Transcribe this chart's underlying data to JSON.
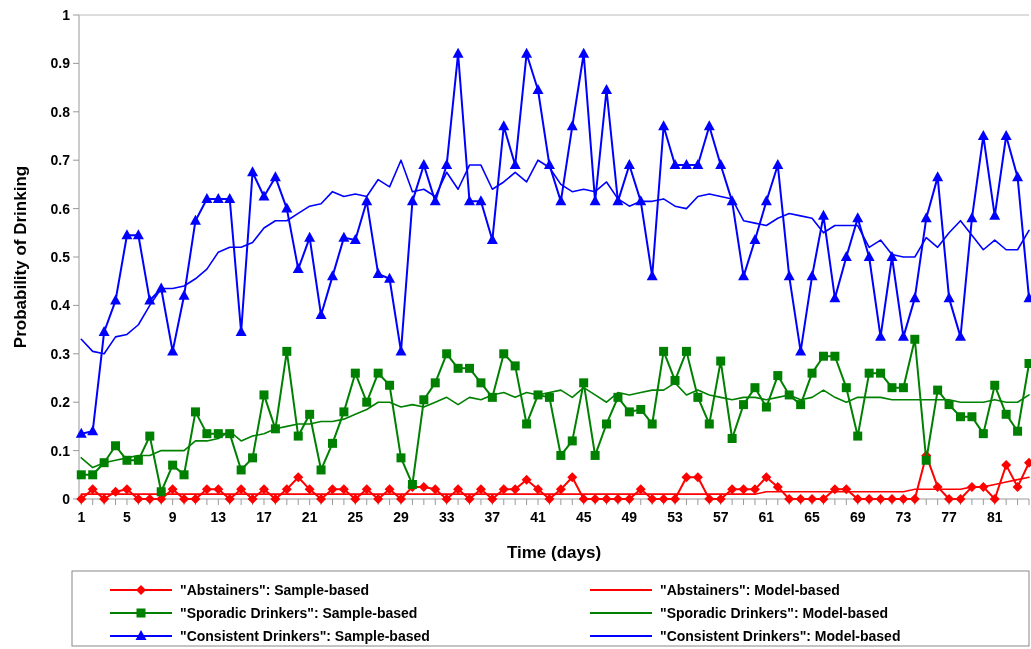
{
  "chart_data": {
    "type": "line",
    "xlabel": "Time (days)",
    "ylabel": "Probability of Drinking",
    "x": [
      1,
      2,
      3,
      4,
      5,
      6,
      7,
      8,
      9,
      10,
      11,
      12,
      13,
      14,
      15,
      16,
      17,
      18,
      19,
      20,
      21,
      22,
      23,
      24,
      25,
      26,
      27,
      28,
      29,
      30,
      31,
      32,
      33,
      34,
      35,
      36,
      37,
      38,
      39,
      40,
      41,
      42,
      43,
      44,
      45,
      46,
      47,
      48,
      49,
      50,
      51,
      52,
      53,
      54,
      55,
      56,
      57,
      58,
      59,
      60,
      61,
      62,
      63,
      64,
      65,
      66,
      67,
      68,
      69,
      70,
      71,
      72,
      73,
      74,
      75,
      76,
      77,
      78,
      79,
      80,
      81,
      82,
      83,
      84
    ],
    "xlim": [
      0.8,
      84
    ],
    "xticks": [
      1,
      {
        "value": 2,
        "label": null
      },
      {
        "value": 3,
        "label": null
      },
      {
        "value": 4,
        "label": null
      },
      5,
      {
        "value": 6,
        "label": null
      },
      {
        "value": 7,
        "label": null
      },
      {
        "value": 8,
        "label": null
      },
      9,
      {
        "value": 10,
        "label": null
      },
      {
        "value": 11,
        "label": null
      },
      {
        "value": 12,
        "label": null
      },
      13,
      {
        "value": 14,
        "label": null
      },
      {
        "value": 15,
        "label": null
      },
      {
        "value": 16,
        "label": null
      },
      17,
      {
        "value": 18,
        "label": null
      },
      {
        "value": 19,
        "label": null
      },
      {
        "value": 20,
        "label": null
      },
      21,
      {
        "value": 22,
        "label": null
      },
      {
        "value": 23,
        "label": null
      },
      {
        "value": 24,
        "label": null
      },
      25,
      {
        "value": 26,
        "label": null
      },
      {
        "value": 27,
        "label": null
      },
      {
        "value": 28,
        "label": null
      },
      29,
      {
        "value": 30,
        "label": null
      },
      {
        "value": 31,
        "label": null
      },
      {
        "value": 32,
        "label": null
      },
      33,
      {
        "value": 34,
        "label": null
      },
      {
        "value": 35,
        "label": null
      },
      {
        "value": 36,
        "label": null
      },
      37,
      {
        "value": 38,
        "label": null
      },
      {
        "value": 39,
        "label": null
      },
      {
        "value": 40,
        "label": null
      },
      41,
      {
        "value": 42,
        "label": null
      },
      {
        "value": 43,
        "label": null
      },
      {
        "value": 44,
        "label": null
      },
      45,
      {
        "value": 46,
        "label": null
      },
      {
        "value": 47,
        "label": null
      },
      {
        "value": 48,
        "label": null
      },
      49,
      {
        "value": 50,
        "label": null
      },
      {
        "value": 51,
        "label": null
      },
      {
        "value": 52,
        "label": null
      },
      53,
      {
        "value": 54,
        "label": null
      },
      {
        "value": 55,
        "label": null
      },
      {
        "value": 56,
        "label": null
      },
      57,
      {
        "value": 58,
        "label": null
      },
      {
        "value": 59,
        "label": null
      },
      {
        "value": 60,
        "label": null
      },
      61,
      {
        "value": 62,
        "label": null
      },
      {
        "value": 63,
        "label": null
      },
      {
        "value": 64,
        "label": null
      },
      65,
      {
        "value": 66,
        "label": null
      },
      {
        "value": 67,
        "label": null
      },
      {
        "value": 68,
        "label": null
      },
      69,
      {
        "value": 70,
        "label": null
      },
      {
        "value": 71,
        "label": null
      },
      {
        "value": 72,
        "label": null
      },
      73,
      {
        "value": 74,
        "label": null
      },
      {
        "value": 75,
        "label": null
      },
      {
        "value": 76,
        "label": null
      },
      77,
      {
        "value": 78,
        "label": null
      },
      {
        "value": 79,
        "label": null
      },
      {
        "value": 80,
        "label": null
      },
      81,
      {
        "value": 82,
        "label": null
      },
      {
        "value": 83,
        "label": null
      },
      {
        "value": 84,
        "label": null
      }
    ],
    "ylim": [
      0,
      1
    ],
    "yticks": [
      0,
      0.1,
      0.2,
      0.3,
      0.4,
      0.5,
      0.6,
      0.7,
      0.8,
      0.9,
      1
    ],
    "grid": false,
    "legend": "bottom",
    "line_style": "solid",
    "series": [
      {
        "name": "\"Abstainers\": Sample-based",
        "color": "#ff0000",
        "marker": "diamond",
        "values": [
          0,
          0.02,
          0,
          0.015,
          0.02,
          0,
          0,
          0,
          0.02,
          0,
          0,
          0.02,
          0.02,
          0,
          0.02,
          0,
          0.02,
          0,
          0.02,
          0.045,
          0.02,
          0,
          0.02,
          0.02,
          0,
          0.02,
          0,
          0.02,
          0,
          0.025,
          0.025,
          0.02,
          0,
          0.02,
          0,
          0.02,
          0,
          0.02,
          0.02,
          0.04,
          0.02,
          0,
          0.02,
          0.045,
          0,
          0,
          0,
          0,
          0,
          0.02,
          0,
          0,
          0,
          0.045,
          0.045,
          0,
          0,
          0.02,
          0.02,
          0.02,
          0.045,
          0.025,
          0,
          0,
          0,
          0,
          0.02,
          0.02,
          0,
          0,
          0,
          0,
          0,
          0,
          0.09,
          0.025,
          0,
          0,
          0.025,
          0.025,
          0,
          0.07,
          0.025,
          0.075
        ]
      },
      {
        "name": "\"Abstainers\": Model-based",
        "color": "#ff0000",
        "marker": "none",
        "values": [
          0.01,
          0.01,
          0.01,
          0.01,
          0.01,
          0.01,
          0.01,
          0.01,
          0.01,
          0.01,
          0.01,
          0.01,
          0.01,
          0.01,
          0.01,
          0.01,
          0.01,
          0.01,
          0.01,
          0.01,
          0.01,
          0.01,
          0.01,
          0.01,
          0.01,
          0.01,
          0.01,
          0.01,
          0.01,
          0.01,
          0.01,
          0.01,
          0.01,
          0.01,
          0.01,
          0.01,
          0.01,
          0.01,
          0.01,
          0.01,
          0.01,
          0.01,
          0.01,
          0.01,
          0.01,
          0.01,
          0.01,
          0.01,
          0.01,
          0.01,
          0.01,
          0.01,
          0.01,
          0.01,
          0.01,
          0.01,
          0.01,
          0.01,
          0.01,
          0.01,
          0.015,
          0.015,
          0.015,
          0.015,
          0.015,
          0.015,
          0.015,
          0.015,
          0.015,
          0.015,
          0.015,
          0.015,
          0.015,
          0.02,
          0.02,
          0.02,
          0.02,
          0.02,
          0.025,
          0.025,
          0.03,
          0.035,
          0.04,
          0.045
        ]
      },
      {
        "name": "\"Sporadic Drinkers\": Sample-based",
        "color": "#008000",
        "marker": "square",
        "values": [
          0.05,
          0.05,
          0.075,
          0.11,
          0.08,
          0.08,
          0.13,
          0.015,
          0.07,
          0.05,
          0.18,
          0.135,
          0.135,
          0.135,
          0.06,
          0.085,
          0.215,
          0.145,
          0.305,
          0.13,
          0.175,
          0.06,
          0.115,
          0.18,
          0.26,
          0.2,
          0.26,
          0.235,
          0.085,
          0.03,
          0.205,
          0.24,
          0.3,
          0.27,
          0.27,
          0.24,
          0.21,
          0.3,
          0.275,
          0.155,
          0.215,
          0.21,
          0.09,
          0.12,
          0.24,
          0.09,
          0.155,
          0.21,
          0.18,
          0.185,
          0.155,
          0.305,
          0.245,
          0.305,
          0.21,
          0.155,
          0.285,
          0.125,
          0.195,
          0.23,
          0.19,
          0.255,
          0.215,
          0.195,
          0.26,
          0.295,
          0.295,
          0.23,
          0.13,
          0.26,
          0.26,
          0.23,
          0.23,
          0.33,
          0.08,
          0.225,
          0.195,
          0.17,
          0.17,
          0.135,
          0.235,
          0.175,
          0.14,
          0.28
        ]
      },
      {
        "name": "\"Sporadic Drinkers\": Model-based",
        "color": "#008000",
        "marker": "none",
        "values": [
          0.085,
          0.065,
          0.075,
          0.08,
          0.085,
          0.09,
          0.09,
          0.1,
          0.1,
          0.1,
          0.12,
          0.12,
          0.125,
          0.14,
          0.12,
          0.13,
          0.135,
          0.145,
          0.15,
          0.155,
          0.155,
          0.16,
          0.16,
          0.165,
          0.175,
          0.185,
          0.2,
          0.2,
          0.19,
          0.195,
          0.19,
          0.2,
          0.21,
          0.195,
          0.21,
          0.205,
          0.215,
          0.22,
          0.21,
          0.22,
          0.215,
          0.22,
          0.225,
          0.21,
          0.23,
          0.215,
          0.2,
          0.22,
          0.215,
          0.22,
          0.225,
          0.225,
          0.24,
          0.215,
          0.225,
          0.215,
          0.21,
          0.205,
          0.21,
          0.21,
          0.205,
          0.21,
          0.215,
          0.205,
          0.21,
          0.225,
          0.21,
          0.2,
          0.21,
          0.21,
          0.21,
          0.205,
          0.205,
          0.205,
          0.205,
          0.205,
          0.205,
          0.2,
          0.2,
          0.2,
          0.205,
          0.2,
          0.2,
          0.215
        ]
      },
      {
        "name": "\"Consistent Drinkers\": Sample-based",
        "color": "#0000ff",
        "marker": "triangle",
        "values": [
          0.135,
          0.14,
          0.345,
          0.41,
          0.545,
          0.545,
          0.41,
          0.435,
          0.305,
          0.42,
          0.575,
          0.62,
          0.62,
          0.62,
          0.345,
          0.675,
          0.625,
          0.665,
          0.6,
          0.475,
          0.54,
          0.38,
          0.46,
          0.54,
          0.535,
          0.615,
          0.465,
          0.455,
          0.305,
          0.615,
          0.69,
          0.615,
          0.69,
          0.92,
          0.615,
          0.615,
          0.535,
          0.77,
          0.69,
          0.92,
          0.845,
          0.69,
          0.615,
          0.77,
          0.92,
          0.615,
          0.845,
          0.615,
          0.69,
          0.615,
          0.46,
          0.77,
          0.69,
          0.69,
          0.69,
          0.77,
          0.69,
          0.615,
          0.46,
          0.535,
          0.615,
          0.69,
          0.46,
          0.305,
          0.46,
          0.585,
          0.415,
          0.5,
          0.58,
          0.5,
          0.335,
          0.5,
          0.335,
          0.415,
          0.58,
          0.665,
          0.415,
          0.335,
          0.58,
          0.75,
          0.585,
          0.75,
          0.665,
          0.415
        ]
      },
      {
        "name": "\"Consistent Drinkers\": Model-based",
        "color": "#0000ff",
        "marker": "none",
        "values": [
          0.33,
          0.305,
          0.3,
          0.335,
          0.34,
          0.36,
          0.4,
          0.435,
          0.435,
          0.44,
          0.455,
          0.475,
          0.51,
          0.52,
          0.52,
          0.53,
          0.56,
          0.575,
          0.575,
          0.59,
          0.605,
          0.61,
          0.635,
          0.625,
          0.63,
          0.625,
          0.66,
          0.645,
          0.7,
          0.635,
          0.64,
          0.625,
          0.675,
          0.64,
          0.69,
          0.69,
          0.64,
          0.655,
          0.675,
          0.655,
          0.7,
          0.685,
          0.65,
          0.635,
          0.64,
          0.635,
          0.655,
          0.62,
          0.605,
          0.615,
          0.615,
          0.62,
          0.605,
          0.6,
          0.625,
          0.63,
          0.625,
          0.62,
          0.575,
          0.57,
          0.565,
          0.58,
          0.59,
          0.585,
          0.58,
          0.55,
          0.565,
          0.565,
          0.565,
          0.52,
          0.535,
          0.505,
          0.5,
          0.5,
          0.54,
          0.52,
          0.55,
          0.575,
          0.545,
          0.515,
          0.535,
          0.515,
          0.515,
          0.555
        ]
      }
    ]
  }
}
